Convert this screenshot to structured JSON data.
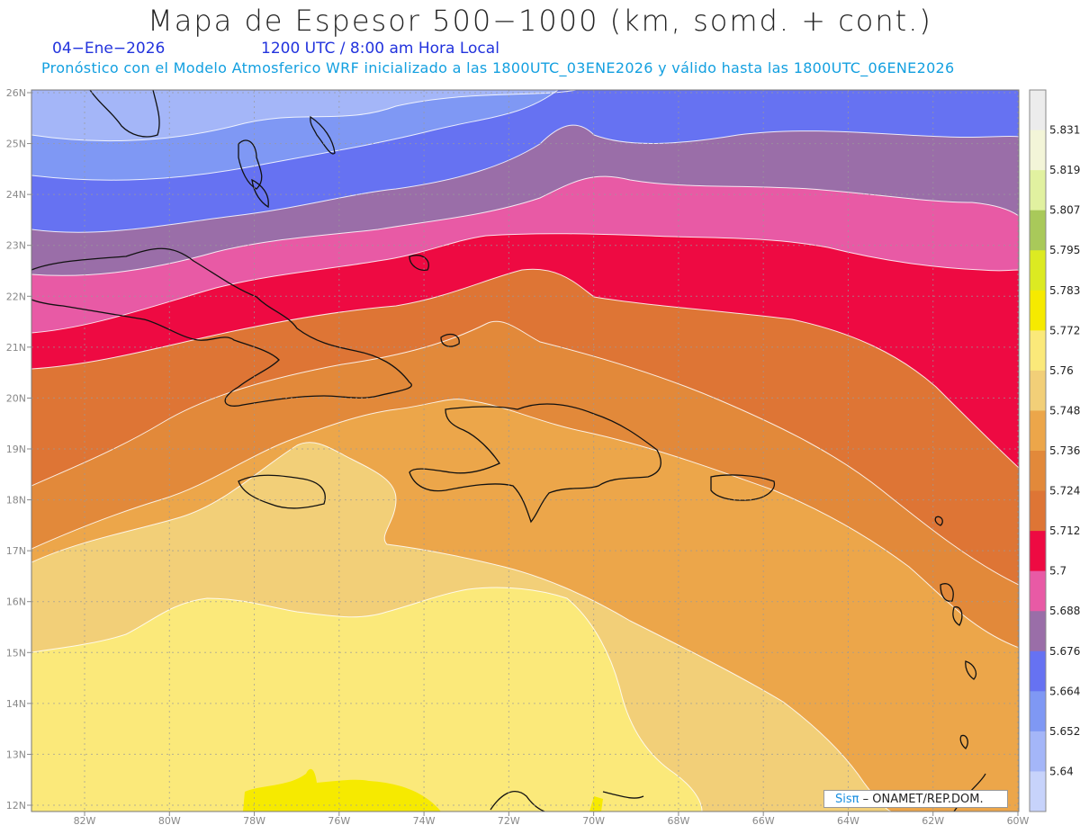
{
  "title": "Mapa de Espesor 500−1000 (km, somd. + cont.)",
  "date_label": "04−Ene−2026",
  "time_label": "1200 UTC / 8:00 am Hora Local",
  "model_info": "Pronóstico con el Modelo Atmosferico WRF inicializado a las 1800UTC_03ENE2026 y válido hasta las  1800UTC_06ENE2026",
  "lat_labels": [
    "26N",
    "25N",
    "24N",
    "23N",
    "22N",
    "21N",
    "20N",
    "19N",
    "18N",
    "17N",
    "16N",
    "15N",
    "14N",
    "13N",
    "12N"
  ],
  "lon_labels": [
    "82W",
    "80W",
    "78W",
    "76W",
    "74W",
    "72W",
    "70W",
    "68W",
    "66W",
    "64W",
    "62W",
    "60W"
  ],
  "colorbar": {
    "labels": [
      "5.831",
      "5.819",
      "5.807",
      "5.795",
      "5.783",
      "5.772",
      "5.76",
      "5.748",
      "5.736",
      "5.724",
      "5.712",
      "5.7",
      "5.688",
      "5.676",
      "5.664",
      "5.652",
      "5.64"
    ],
    "colors": [
      "#ececec",
      "#f3f5d8",
      "#e1f1a0",
      "#a9c95a",
      "#dcea22",
      "#f6ea00",
      "#fbe97a",
      "#f2cf78",
      "#eca64a",
      "#e2893a",
      "#de7535",
      "#ee0a42",
      "#e85aa5",
      "#9a6ea8",
      "#6672f2",
      "#7f98f4",
      "#a4b6f8",
      "#c7d3fb"
    ]
  },
  "credit": {
    "sis": "Sisπ",
    "text": " – ONAMET/REP.DOM."
  },
  "legend_colors": {
    "c5652": "#a4b6f8",
    "c5664": "#7f98f4",
    "c5676": "#6672f2",
    "c5688": "#9a6ea8",
    "c5700": "#e85aa5",
    "c5712": "#ee0a42",
    "c5724": "#de7535",
    "c5736": "#e2893a",
    "c5748": "#eca64a",
    "c5760": "#f2cf78",
    "c5772": "#fbe97a",
    "c5783": "#f6ea00"
  }
}
